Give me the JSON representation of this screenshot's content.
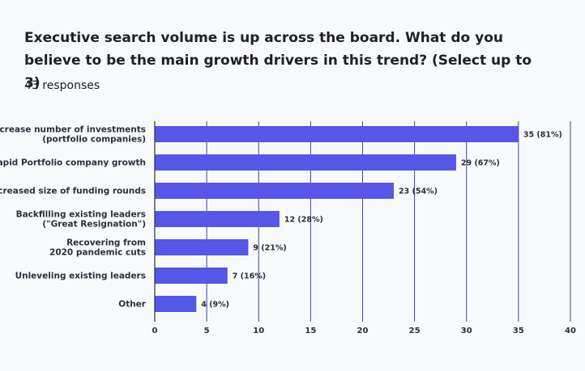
{
  "question": {
    "title": "Executive search volume is up across the board.  What do you believe to be the main growth drivers in this trend?  (Select up to 3)",
    "responses": "43 responses"
  },
  "colors": {
    "bar": "#5656e8",
    "gridline": "#3a4a8a",
    "axis": "#2a2f4a",
    "background": "#f8f9fb"
  },
  "chart_data": {
    "type": "bar",
    "orientation": "horizontal",
    "title": "",
    "xlabel": "",
    "ylabel": "",
    "xlim": [
      0,
      40
    ],
    "ticks": [
      0,
      5,
      10,
      15,
      20,
      25,
      30,
      35,
      40
    ],
    "categories": [
      [
        "Increase number of investments",
        "(portfolio companies)"
      ],
      [
        "Rapid Portfolio company growth"
      ],
      [
        "Increased size of funding rounds"
      ],
      [
        "Backfilling existing leaders",
        "(\"Great Resignation\")"
      ],
      [
        "Recovering from",
        "2020 pandemic cuts"
      ],
      [
        "Unleveling existing leaders"
      ],
      [
        "Other"
      ]
    ],
    "values": [
      35,
      29,
      23,
      12,
      9,
      7,
      4
    ],
    "value_labels": [
      "35 (81%)",
      "29 (67%)",
      "23 (54%)",
      "12 (28%)",
      "9 (21%)",
      "7 (16%)",
      "4 (9%)"
    ],
    "grid": true
  }
}
